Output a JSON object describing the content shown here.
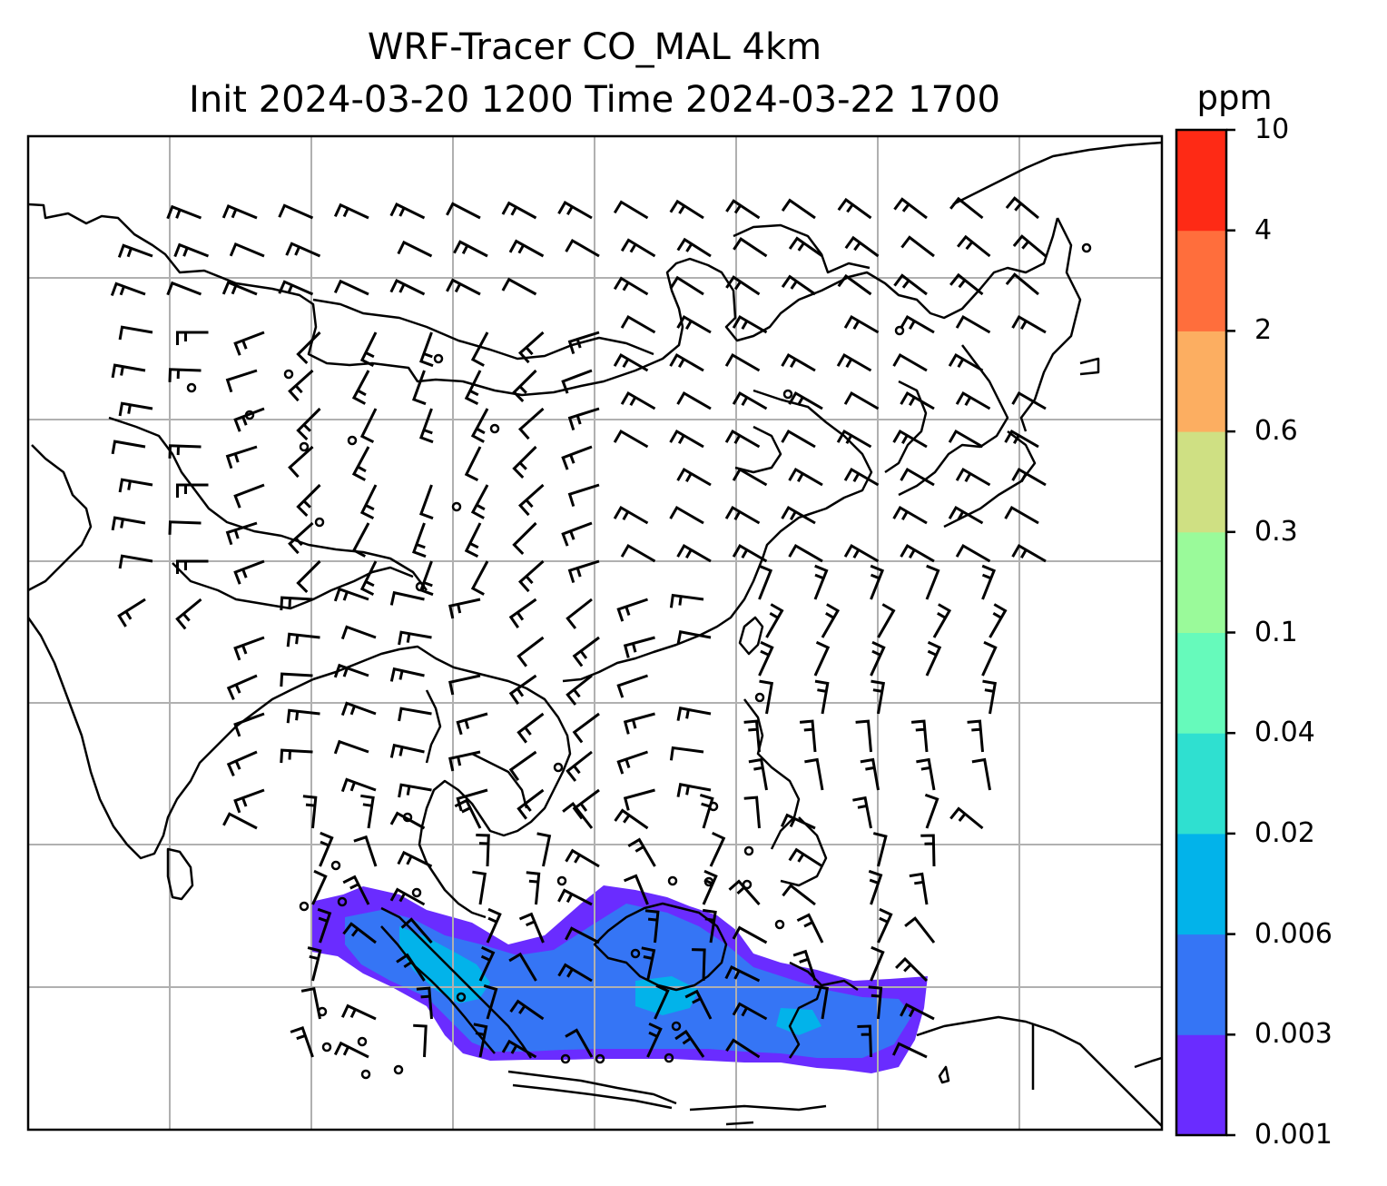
{
  "title": {
    "line1": "WRF-Tracer CO_MAL 4km",
    "line2": "Init 2024-03-20 1200 Time 2024-03-22 1700"
  },
  "colorbar": {
    "unit": "ppm",
    "levels": [
      "0.001",
      "0.003",
      "0.006",
      "0.02",
      "0.04",
      "0.1",
      "0.3",
      "0.6",
      "2",
      "4",
      "10"
    ],
    "colors": [
      "#6a2cff",
      "#3575f5",
      "#02b3ea",
      "#2fe0d0",
      "#66fabb",
      "#9afa9a",
      "#cfe083",
      "#fcae61",
      "#ff6e3c",
      "#fe2a15"
    ]
  },
  "map": {
    "gridlines": true,
    "coastline_color": "#000000",
    "grid_color": "#b0b0b0",
    "wind_barb_color": "#000000"
  }
}
